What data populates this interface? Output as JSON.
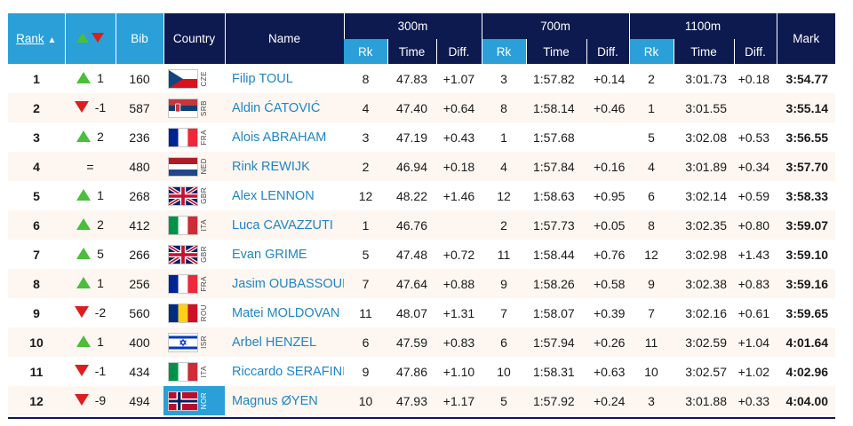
{
  "header": {
    "rank": "Rank",
    "bib": "Bib",
    "country": "Country",
    "name": "Name",
    "mark": "Mark",
    "splits": [
      "300m",
      "700m",
      "1100m"
    ],
    "rk": "Rk",
    "time": "Time",
    "diff": "Diff."
  },
  "colors": {
    "header_dark": "#0d1a4f",
    "header_light": "#2a9fd8",
    "up": "#4bbf3b",
    "down": "#dc1e1e",
    "name_link": "#1e86c6"
  },
  "rows": [
    {
      "rank": "1",
      "dir": "up",
      "change": "1",
      "bib": "160",
      "code": "CZE",
      "flag": "cze",
      "name": "Filip TOUL",
      "s1": {
        "rk": "8",
        "time": "47.83",
        "diff": "+1.07"
      },
      "s2": {
        "rk": "3",
        "time": "1:57.82",
        "diff": "+0.14"
      },
      "s3": {
        "rk": "2",
        "time": "3:01.73",
        "diff": "+0.18"
      },
      "mark": "3:54.77"
    },
    {
      "rank": "2",
      "dir": "down",
      "change": "-1",
      "bib": "587",
      "code": "SRB",
      "flag": "srb",
      "name": "Aldin ĆATOVIĆ",
      "s1": {
        "rk": "4",
        "time": "47.40",
        "diff": "+0.64"
      },
      "s2": {
        "rk": "8",
        "time": "1:58.14",
        "diff": "+0.46"
      },
      "s3": {
        "rk": "1",
        "time": "3:01.55",
        "diff": ""
      },
      "mark": "3:55.14"
    },
    {
      "rank": "3",
      "dir": "up",
      "change": "2",
      "bib": "236",
      "code": "FRA",
      "flag": "fra",
      "name": "Alois ABRAHAM",
      "s1": {
        "rk": "3",
        "time": "47.19",
        "diff": "+0.43"
      },
      "s2": {
        "rk": "1",
        "time": "1:57.68",
        "diff": ""
      },
      "s3": {
        "rk": "5",
        "time": "3:02.08",
        "diff": "+0.53"
      },
      "mark": "3:56.55"
    },
    {
      "rank": "4",
      "dir": "same",
      "change": "=",
      "bib": "480",
      "code": "NED",
      "flag": "ned",
      "name": "Rink REWIJK",
      "s1": {
        "rk": "2",
        "time": "46.94",
        "diff": "+0.18"
      },
      "s2": {
        "rk": "4",
        "time": "1:57.84",
        "diff": "+0.16"
      },
      "s3": {
        "rk": "4",
        "time": "3:01.89",
        "diff": "+0.34"
      },
      "mark": "3:57.70"
    },
    {
      "rank": "5",
      "dir": "up",
      "change": "1",
      "bib": "268",
      "code": "GBR",
      "flag": "gbr",
      "name": "Alex LENNON",
      "s1": {
        "rk": "12",
        "time": "48.22",
        "diff": "+1.46"
      },
      "s2": {
        "rk": "12",
        "time": "1:58.63",
        "diff": "+0.95"
      },
      "s3": {
        "rk": "6",
        "time": "3:02.14",
        "diff": "+0.59"
      },
      "mark": "3:58.33"
    },
    {
      "rank": "6",
      "dir": "up",
      "change": "2",
      "bib": "412",
      "code": "ITA",
      "flag": "ita",
      "name": "Luca CAVAZZUTI",
      "s1": {
        "rk": "1",
        "time": "46.76",
        "diff": ""
      },
      "s2": {
        "rk": "2",
        "time": "1:57.73",
        "diff": "+0.05"
      },
      "s3": {
        "rk": "8",
        "time": "3:02.35",
        "diff": "+0.80"
      },
      "mark": "3:59.07"
    },
    {
      "rank": "7",
      "dir": "up",
      "change": "5",
      "bib": "266",
      "code": "GBR",
      "flag": "gbr",
      "name": "Evan GRIME",
      "s1": {
        "rk": "5",
        "time": "47.48",
        "diff": "+0.72"
      },
      "s2": {
        "rk": "11",
        "time": "1:58.44",
        "diff": "+0.76"
      },
      "s3": {
        "rk": "12",
        "time": "3:02.98",
        "diff": "+1.43"
      },
      "mark": "3:59.10"
    },
    {
      "rank": "8",
      "dir": "up",
      "change": "1",
      "bib": "256",
      "code": "FRA",
      "flag": "fra",
      "name": "Jasim OUBASSOUR",
      "s1": {
        "rk": "7",
        "time": "47.64",
        "diff": "+0.88"
      },
      "s2": {
        "rk": "9",
        "time": "1:58.26",
        "diff": "+0.58"
      },
      "s3": {
        "rk": "9",
        "time": "3:02.38",
        "diff": "+0.83"
      },
      "mark": "3:59.16"
    },
    {
      "rank": "9",
      "dir": "down",
      "change": "-2",
      "bib": "560",
      "code": "ROU",
      "flag": "rou",
      "name": "Matei MOLDOVAN",
      "s1": {
        "rk": "11",
        "time": "48.07",
        "diff": "+1.31"
      },
      "s2": {
        "rk": "7",
        "time": "1:58.07",
        "diff": "+0.39"
      },
      "s3": {
        "rk": "7",
        "time": "3:02.16",
        "diff": "+0.61"
      },
      "mark": "3:59.65"
    },
    {
      "rank": "10",
      "dir": "up",
      "change": "1",
      "bib": "400",
      "code": "ISR",
      "flag": "isr",
      "name": "Arbel HENZEL",
      "s1": {
        "rk": "6",
        "time": "47.59",
        "diff": "+0.83"
      },
      "s2": {
        "rk": "6",
        "time": "1:57.94",
        "diff": "+0.26"
      },
      "s3": {
        "rk": "11",
        "time": "3:02.59",
        "diff": "+1.04"
      },
      "mark": "4:01.64"
    },
    {
      "rank": "11",
      "dir": "down",
      "change": "-1",
      "bib": "434",
      "code": "ITA",
      "flag": "ita",
      "name": "Riccardo SERAFINI",
      "s1": {
        "rk": "9",
        "time": "47.86",
        "diff": "+1.10"
      },
      "s2": {
        "rk": "10",
        "time": "1:58.31",
        "diff": "+0.63"
      },
      "s3": {
        "rk": "10",
        "time": "3:02.57",
        "diff": "+1.02"
      },
      "mark": "4:02.96"
    },
    {
      "rank": "12",
      "dir": "down",
      "change": "-9",
      "bib": "494",
      "code": "NOR",
      "flag": "nor",
      "name": "Magnus ØYEN",
      "s1": {
        "rk": "10",
        "time": "47.93",
        "diff": "+1.17"
      },
      "s2": {
        "rk": "5",
        "time": "1:57.92",
        "diff": "+0.24"
      },
      "s3": {
        "rk": "3",
        "time": "3:01.88",
        "diff": "+0.33"
      },
      "mark": "4:04.00"
    }
  ]
}
